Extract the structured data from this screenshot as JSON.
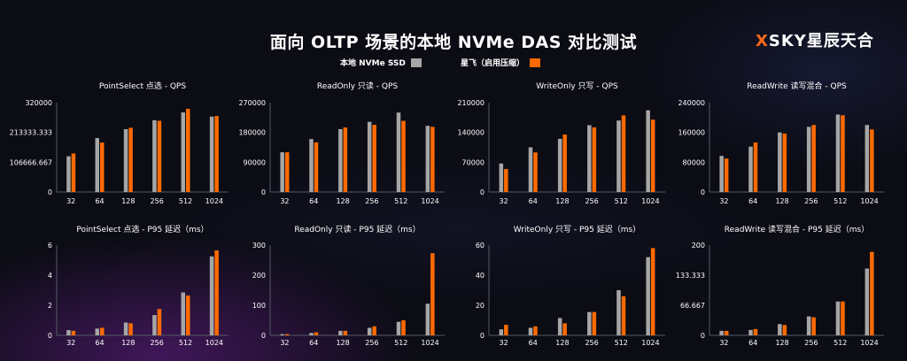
{
  "header": {
    "title": "面向 OLTP 场景的本地 NVMe DAS 对比测试",
    "logo_x": "X",
    "logo_rest": "SKY星辰天合"
  },
  "legend": [
    {
      "label": "本地 NVMe SSD",
      "color": "#a6a6a6"
    },
    {
      "label": "星飞（启用压缩）",
      "color": "#ff6a00"
    }
  ],
  "colors": {
    "series_a": "#a6a6a6",
    "series_b": "#ff6a00",
    "accent": "#ff6a1a",
    "axis": "#555a66"
  },
  "chart_data": [
    {
      "type": "bar",
      "title": "PointSelect 点选 - QPS",
      "categories": [
        "32",
        "64",
        "128",
        "256",
        "512",
        "1024"
      ],
      "series": [
        {
          "name": "本地 NVMe SSD",
          "values": [
            128000,
            193000,
            225000,
            257000,
            285000,
            270000
          ]
        },
        {
          "name": "星飞（启用压缩）",
          "values": [
            138000,
            177000,
            230000,
            255000,
            298000,
            272000
          ]
        }
      ],
      "ylim": [
        0,
        320000
      ],
      "yticks": [
        "0",
        "106666.667",
        "213333.333",
        "320000"
      ]
    },
    {
      "type": "bar",
      "title": "ReadOnly 只读 - QPS",
      "categories": [
        "32",
        "64",
        "128",
        "256",
        "512",
        "1024"
      ],
      "series": [
        {
          "name": "本地 NVMe SSD",
          "values": [
            120000,
            160000,
            190000,
            212000,
            240000,
            200000
          ]
        },
        {
          "name": "星飞（启用压缩）",
          "values": [
            120000,
            150000,
            195000,
            203000,
            215000,
            197000
          ]
        }
      ],
      "ylim": [
        0,
        270000
      ],
      "yticks": [
        "0",
        "90000",
        "180000",
        "270000"
      ]
    },
    {
      "type": "bar",
      "title": "WriteOnly 只写 - QPS",
      "categories": [
        "32",
        "64",
        "128",
        "256",
        "512",
        "1024"
      ],
      "series": [
        {
          "name": "本地 NVMe SSD",
          "values": [
            67000,
            105000,
            125000,
            157000,
            168000,
            192000
          ]
        },
        {
          "name": "星飞（启用压缩）",
          "values": [
            54000,
            93000,
            135000,
            152000,
            180000,
            170000
          ]
        }
      ],
      "ylim": [
        0,
        210000
      ],
      "yticks": [
        "0",
        "70000",
        "140000",
        "210000"
      ]
    },
    {
      "type": "bar",
      "title": "ReadWrite 读写混合 - QPS",
      "categories": [
        "32",
        "64",
        "128",
        "256",
        "512",
        "1024"
      ],
      "series": [
        {
          "name": "本地 NVMe SSD",
          "values": [
            97000,
            122000,
            160000,
            175000,
            208000,
            180000
          ]
        },
        {
          "name": "星飞（启用压缩）",
          "values": [
            90000,
            133000,
            157000,
            180000,
            206000,
            168000
          ]
        }
      ],
      "ylim": [
        0,
        240000
      ],
      "yticks": [
        "0",
        "80000",
        "160000",
        "240000"
      ]
    },
    {
      "type": "bar",
      "title": "PointSelect 点选 - P95 延迟（ms）",
      "categories": [
        "32",
        "64",
        "128",
        "256",
        "512",
        "1024"
      ],
      "series": [
        {
          "name": "本地 NVMe SSD",
          "values": [
            0.35,
            0.45,
            0.85,
            1.35,
            2.85,
            5.25
          ]
        },
        {
          "name": "星飞（启用压缩）",
          "values": [
            0.3,
            0.5,
            0.8,
            1.75,
            2.65,
            5.65
          ]
        }
      ],
      "ylim": [
        0,
        6
      ],
      "yticks": [
        "0",
        "2",
        "4",
        "6"
      ]
    },
    {
      "type": "bar",
      "title": "ReadOnly 只读 - P95 延迟（ms）",
      "categories": [
        "32",
        "64",
        "128",
        "256",
        "512",
        "1024"
      ],
      "series": [
        {
          "name": "本地 NVMe SSD",
          "values": [
            4,
            8,
            15,
            25,
            45,
            105
          ]
        },
        {
          "name": "星飞（启用压缩）",
          "values": [
            4,
            10,
            15,
            30,
            50,
            273
          ]
        }
      ],
      "ylim": [
        0,
        300
      ],
      "yticks": [
        "0",
        "100",
        "200",
        "300"
      ]
    },
    {
      "type": "bar",
      "title": "WriteOnly 只写 - P95 延迟（ms）",
      "categories": [
        "32",
        "64",
        "128",
        "256",
        "512",
        "1024"
      ],
      "series": [
        {
          "name": "本地 NVMe SSD",
          "values": [
            4,
            5,
            11.5,
            15.5,
            30,
            52
          ]
        },
        {
          "name": "星飞（启用压缩）",
          "values": [
            7,
            6,
            8,
            15.5,
            26,
            58
          ]
        }
      ],
      "ylim": [
        0,
        60
      ],
      "yticks": [
        "0",
        "20",
        "40",
        "60"
      ]
    },
    {
      "type": "bar",
      "title": "ReadWrite 读写混合 - P95 延迟（ms）",
      "categories": [
        "32",
        "64",
        "128",
        "256",
        "512",
        "1024"
      ],
      "series": [
        {
          "name": "本地 NVMe SSD",
          "values": [
            10,
            12,
            25,
            42,
            75,
            148
          ]
        },
        {
          "name": "星飞（启用压缩）",
          "values": [
            10,
            14,
            23,
            40,
            75,
            185
          ]
        }
      ],
      "ylim": [
        0,
        200
      ],
      "yticks": [
        "0",
        "66.667",
        "133.333",
        "200"
      ]
    }
  ]
}
